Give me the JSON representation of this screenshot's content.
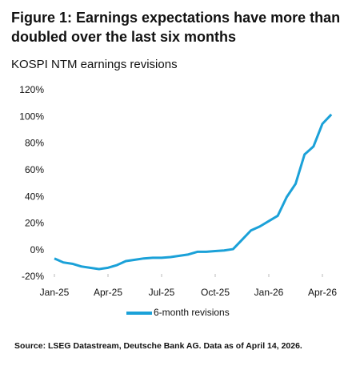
{
  "chart_data": {
    "type": "line",
    "title": "Figure 1: Earnings expectations have more than doubled over the last six months",
    "subtitle": "KOSPI NTM earnings revisions",
    "source": "Source: LSEG Datastream, Deutsche Bank AG. Data as of April 14, 2026.",
    "categories": [
      "Jan-25",
      null,
      null,
      null,
      null,
      null,
      "Apr-25",
      null,
      null,
      null,
      null,
      null,
      "Jul-25",
      null,
      null,
      null,
      null,
      null,
      "Oct-25",
      null,
      null,
      null,
      null,
      null,
      "Jan-26",
      null,
      null,
      null,
      null,
      null,
      "Apr-26",
      null
    ],
    "series": [
      {
        "name": "6-month revisions",
        "color": "#1ba1d8",
        "values": [
          -6,
          -9,
          -10,
          -12,
          -13,
          -14,
          -13,
          -11,
          -8,
          -7,
          -6,
          -5.5,
          -5.5,
          -5,
          -4,
          -3,
          -1,
          -1,
          -0.5,
          0,
          1,
          8,
          15,
          18,
          22,
          26,
          40,
          50,
          72,
          78,
          95,
          102
        ]
      }
    ],
    "ylim": [
      -20,
      120
    ],
    "yticks": [
      {
        "value": -20,
        "label": "-20%"
      },
      {
        "value": 0,
        "label": "0%"
      },
      {
        "value": 20,
        "label": "20%"
      },
      {
        "value": 40,
        "label": "40%"
      },
      {
        "value": 60,
        "label": "60%"
      },
      {
        "value": 80,
        "label": "80%"
      },
      {
        "value": 100,
        "label": "100%"
      },
      {
        "value": 120,
        "label": "120%"
      }
    ],
    "grid": false
  }
}
